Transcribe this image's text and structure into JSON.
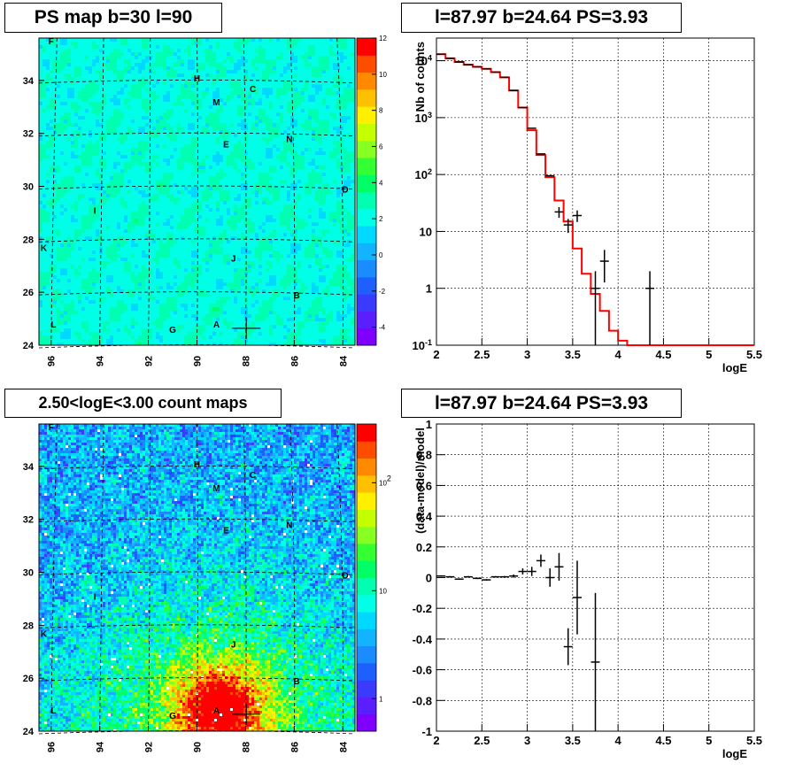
{
  "panels": {
    "ps_map": {
      "title": "PS map b=30 l=90"
    },
    "spectrum": {
      "title": "l=87.97 b=24.64 PS=3.93"
    },
    "count_map": {
      "title": "2.50<logE<3.00 count maps"
    },
    "residual": {
      "title": "l=87.97 b=24.64 PS=3.93"
    }
  },
  "chart_data": [
    {
      "type": "heatmap",
      "id": "ps_map",
      "title": "PS map b=30 l=90",
      "x_ticks": [
        "96",
        "94",
        "92",
        "90",
        "88",
        "86",
        "84"
      ],
      "y_ticks": [
        "24",
        "26",
        "28",
        "30",
        "32",
        "34"
      ],
      "xlim": [
        96.5,
        83.5
      ],
      "ylim": [
        24,
        35.6
      ],
      "colorbar": {
        "scale": "linear",
        "range": [
          -5,
          12
        ],
        "ticks": [
          "-4",
          "-2",
          "0",
          "2",
          "4",
          "6",
          "8",
          "10",
          "12"
        ]
      },
      "sources": [
        {
          "label": "F",
          "l": 96,
          "b": 35.5
        },
        {
          "label": "H",
          "l": 90,
          "b": 34.1
        },
        {
          "label": "C",
          "l": 87.7,
          "b": 33.7
        },
        {
          "label": "M",
          "l": 89.2,
          "b": 33.2
        },
        {
          "label": "E",
          "l": 88.8,
          "b": 31.6
        },
        {
          "label": "N",
          "l": 86.2,
          "b": 31.8
        },
        {
          "label": "D",
          "l": 83.9,
          "b": 29.9
        },
        {
          "label": "I",
          "l": 94.2,
          "b": 29.1
        },
        {
          "label": "K",
          "l": 96.3,
          "b": 27.7
        },
        {
          "label": "J",
          "l": 88.5,
          "b": 27.3
        },
        {
          "label": "B",
          "l": 85.9,
          "b": 25.9
        },
        {
          "label": "L",
          "l": 95.9,
          "b": 24.8
        },
        {
          "label": "G",
          "l": 91,
          "b": 24.6
        },
        {
          "label": "A",
          "l": 89.2,
          "b": 24.8
        }
      ],
      "marker": {
        "l": 87.97,
        "b": 24.64
      }
    },
    {
      "type": "line",
      "id": "spectrum",
      "title": "l=87.97 b=24.64 PS=3.93",
      "xlabel": "logE",
      "ylabel": "Nb of counts",
      "xlim": [
        2,
        5.5
      ],
      "ylim": [
        0.1,
        25000
      ],
      "yscale": "log",
      "grid": true,
      "x_ticks": [
        "2",
        "2.5",
        "3",
        "3.5",
        "4",
        "4.5",
        "5",
        "5.5"
      ],
      "y_ticks": [
        "10^-1",
        "1",
        "10",
        "10^2",
        "10^3",
        "10^4"
      ],
      "series": [
        {
          "kind": "model-histogram",
          "color": "#ff0000",
          "bin_edges": [
            2,
            2.1,
            2.2,
            2.3,
            2.4,
            2.5,
            2.6,
            2.7,
            2.8,
            2.9,
            3,
            3.1,
            3.2,
            3.3,
            3.4,
            3.5,
            3.6,
            3.7,
            3.8,
            3.9,
            4,
            4.1,
            4.2,
            4.3,
            4.4,
            4.5,
            4.6,
            4.7,
            4.8,
            4.9,
            5,
            5.1,
            5.2,
            5.3,
            5.4,
            5.5
          ],
          "values": [
            13000,
            11000,
            9500,
            8500,
            7800,
            7200,
            6300,
            5100,
            3000,
            1500,
            600,
            220,
            90,
            35,
            15,
            5,
            1.8,
            0.8,
            0.4,
            0.18,
            0.12,
            0.1,
            0.1,
            0.1,
            0.1,
            0.1,
            0.1,
            0.1,
            0.1,
            0.1,
            0.1,
            0.1,
            0.1,
            0.1,
            0.1
          ]
        },
        {
          "kind": "data-points",
          "color": "#000000",
          "points": [
            {
              "x": 2.05,
              "y": 13000
            },
            {
              "x": 2.15,
              "y": 11000
            },
            {
              "x": 2.25,
              "y": 9500
            },
            {
              "x": 2.35,
              "y": 8500
            },
            {
              "x": 2.45,
              "y": 7800
            },
            {
              "x": 2.55,
              "y": 7200
            },
            {
              "x": 2.65,
              "y": 6300
            },
            {
              "x": 2.75,
              "y": 5100
            },
            {
              "x": 2.85,
              "y": 3000
            },
            {
              "x": 2.95,
              "y": 1500
            },
            {
              "x": 3.05,
              "y": 650
            },
            {
              "x": 3.15,
              "y": 230
            },
            {
              "x": 3.25,
              "y": 95
            },
            {
              "x": 3.35,
              "y": 22
            },
            {
              "x": 3.45,
              "y": 13
            },
            {
              "x": 3.55,
              "y": 19
            },
            {
              "x": 3.75,
              "y": 1
            },
            {
              "x": 3.85,
              "y": 3
            },
            {
              "x": 4.35,
              "y": 1
            }
          ]
        }
      ]
    },
    {
      "type": "heatmap",
      "id": "count_map",
      "title": "2.50<logE<3.00 count maps",
      "x_ticks": [
        "96",
        "94",
        "92",
        "90",
        "88",
        "86",
        "84"
      ],
      "y_ticks": [
        "24",
        "26",
        "28",
        "30",
        "32",
        "34"
      ],
      "xlim": [
        96.5,
        83.5
      ],
      "ylim": [
        24,
        35.6
      ],
      "colorbar": {
        "scale": "log",
        "range": [
          0.5,
          350
        ],
        "ticks": [
          "1",
          "10",
          "10^2"
        ]
      },
      "sources": [
        {
          "label": "F",
          "l": 96,
          "b": 35.5
        },
        {
          "label": "H",
          "l": 90,
          "b": 34.1
        },
        {
          "label": "C",
          "l": 87.7,
          "b": 33.7
        },
        {
          "label": "M",
          "l": 89.2,
          "b": 33.2
        },
        {
          "label": "E",
          "l": 88.8,
          "b": 31.6
        },
        {
          "label": "N",
          "l": 86.2,
          "b": 31.8
        },
        {
          "label": "D",
          "l": 83.9,
          "b": 29.9
        },
        {
          "label": "I",
          "l": 94.2,
          "b": 29.1
        },
        {
          "label": "K",
          "l": 96.3,
          "b": 27.7
        },
        {
          "label": "J",
          "l": 88.5,
          "b": 27.3
        },
        {
          "label": "B",
          "l": 85.9,
          "b": 25.9
        },
        {
          "label": "L",
          "l": 95.9,
          "b": 24.8
        },
        {
          "label": "G",
          "l": 91,
          "b": 24.6
        },
        {
          "label": "A",
          "l": 89.2,
          "b": 24.8
        }
      ],
      "marker": {
        "l": 87.97,
        "b": 24.64
      }
    },
    {
      "type": "scatter",
      "id": "residual",
      "title": "l=87.97 b=24.64 PS=3.93",
      "xlabel": "logE",
      "ylabel": "(data-model)/model",
      "xlim": [
        2,
        5.5
      ],
      "ylim": [
        -1,
        1
      ],
      "grid": true,
      "x_ticks": [
        "2",
        "2.5",
        "3",
        "3.5",
        "4",
        "4.5",
        "5",
        "5.5"
      ],
      "y_ticks": [
        "-1",
        "-0.8",
        "-0.6",
        "-0.4",
        "-0.2",
        "0",
        "0.2",
        "0.4",
        "0.6",
        "0.8",
        "1"
      ],
      "points": [
        {
          "x": 2.05,
          "y": 0.01,
          "err": 0.005
        },
        {
          "x": 2.15,
          "y": 0.005,
          "err": 0.005
        },
        {
          "x": 2.25,
          "y": -0.01,
          "err": 0.005
        },
        {
          "x": 2.35,
          "y": 0.005,
          "err": 0.005
        },
        {
          "x": 2.45,
          "y": -0.005,
          "err": 0.005
        },
        {
          "x": 2.55,
          "y": -0.015,
          "err": 0.005
        },
        {
          "x": 2.65,
          "y": 0.005,
          "err": 0.005
        },
        {
          "x": 2.75,
          "y": 0.005,
          "err": 0.005
        },
        {
          "x": 2.85,
          "y": 0.01,
          "err": 0.01
        },
        {
          "x": 2.95,
          "y": 0.04,
          "err": 0.02
        },
        {
          "x": 3.05,
          "y": 0.04,
          "err": 0.03
        },
        {
          "x": 3.15,
          "y": 0.11,
          "err": 0.04
        },
        {
          "x": 3.25,
          "y": 0.0,
          "err": 0.06
        },
        {
          "x": 3.35,
          "y": 0.07,
          "err": 0.09
        },
        {
          "x": 3.45,
          "y": -0.45,
          "err": 0.12
        },
        {
          "x": 3.55,
          "y": -0.13,
          "err": 0.24
        },
        {
          "x": 3.75,
          "y": -0.55,
          "err": 0.45
        }
      ]
    }
  ]
}
